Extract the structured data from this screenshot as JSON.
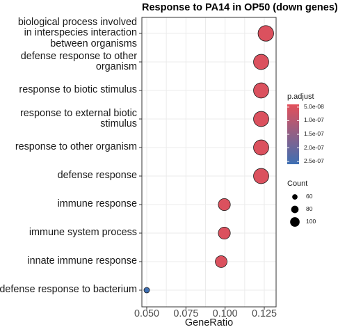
{
  "chart_data": {
    "type": "scatter",
    "title": "Response to PA14 in OP50 (down genes)",
    "xlabel": "GeneRatio",
    "ylabel": "",
    "xlim": [
      0.043,
      0.128
    ],
    "x_ticks": [
      "0.050",
      "0.075",
      "0.100",
      "0.125"
    ],
    "x_tick_values": [
      0.05,
      0.075,
      0.1,
      0.125
    ],
    "grid": true,
    "legend_placement": "right",
    "colors": {
      "high": "#e3505a",
      "low": "#3d6fb3",
      "panel_border": "#333333",
      "grid": "#ebebeb"
    },
    "points": [
      {
        "category": "biological process involved\nin interspecies interaction\nbetween organisms",
        "gene_ratio": 0.126,
        "count": 126,
        "p_adjust": 5e-08
      },
      {
        "category": "defense response to other\norganism",
        "gene_ratio": 0.123,
        "count": 123,
        "p_adjust": 5e-08
      },
      {
        "category": "response to biotic stimulus",
        "gene_ratio": 0.123,
        "count": 123,
        "p_adjust": 5e-08
      },
      {
        "category": "response to external biotic\nstimulus",
        "gene_ratio": 0.123,
        "count": 123,
        "p_adjust": 5e-08
      },
      {
        "category": "response to other organism",
        "gene_ratio": 0.123,
        "count": 123,
        "p_adjust": 5e-08
      },
      {
        "category": "defense response",
        "gene_ratio": 0.123,
        "count": 123,
        "p_adjust": 5e-08
      },
      {
        "category": "immune response",
        "gene_ratio": 0.0995,
        "count": 99,
        "p_adjust": 5e-08
      },
      {
        "category": "immune system process",
        "gene_ratio": 0.0995,
        "count": 99,
        "p_adjust": 5e-08
      },
      {
        "category": "innate immune response",
        "gene_ratio": 0.0975,
        "count": 97,
        "p_adjust": 5e-08
      },
      {
        "category": "defense response to bacterium",
        "gene_ratio": 0.05,
        "count": 50,
        "p_adjust": 2.6e-07
      }
    ],
    "color_legend": {
      "title": "p.adjust",
      "ticks": [
        "5.0e-08",
        "1.0e-07",
        "1.5e-07",
        "2.0e-07",
        "2.5e-07"
      ],
      "tick_values": [
        5e-08,
        1e-07,
        1.5e-07,
        2e-07,
        2.5e-07
      ],
      "range": [
        4e-08,
        2.6e-07
      ]
    },
    "size_legend": {
      "title": "Count",
      "labels": [
        "60",
        "80",
        "100"
      ],
      "values": [
        60,
        80,
        100
      ]
    }
  }
}
